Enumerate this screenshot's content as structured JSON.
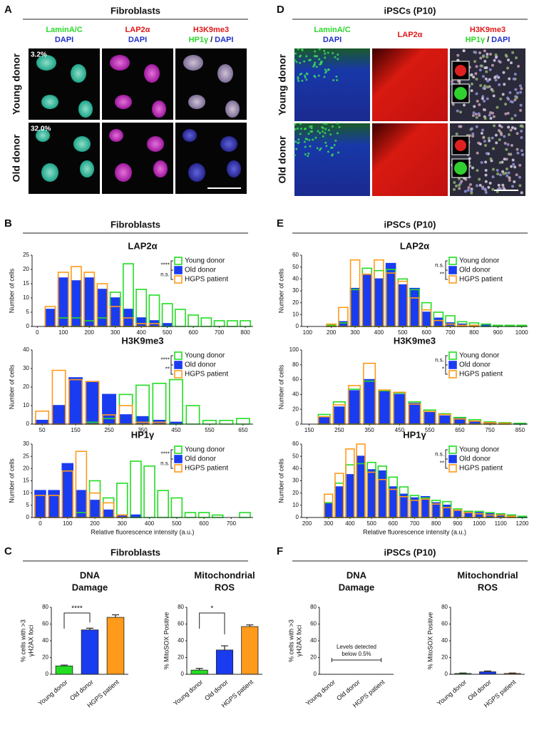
{
  "panels": [
    {
      "letter": "A",
      "header": "Fibroblasts",
      "columns": [
        [
          [
            {
              "text": "LaminA/C",
              "color": "#2bd82b"
            }
          ],
          [
            {
              "text": "DAPI",
              "color": "#1f2fc8"
            }
          ]
        ],
        [
          [
            {
              "text": "LAP2α",
              "color": "#e01818"
            }
          ],
          [
            {
              "text": "DAPI",
              "color": "#1f2fc8"
            }
          ]
        ],
        [
          [
            {
              "text": "H3K9me3",
              "color": "#e01818"
            }
          ],
          [
            {
              "text": "HP1γ",
              "color": "#2bd82b"
            },
            {
              "text": "/",
              "color": "#111111"
            },
            {
              "text": "DAPI",
              "color": "#1f2fc8"
            }
          ]
        ]
      ],
      "rows": [
        "Young donor",
        "Old donor"
      ],
      "insets": [
        "3.2%",
        "32.0%"
      ]
    },
    {
      "letter": "B",
      "header": "Fibroblasts"
    },
    {
      "letter": "C",
      "header": "Fibroblasts"
    },
    {
      "letter": "D",
      "header": "iPSCs (P10)",
      "columns": [
        [
          [
            {
              "text": "LaminA/C",
              "color": "#2bd82b"
            }
          ],
          [
            {
              "text": "DAPI",
              "color": "#1f2fc8"
            }
          ]
        ],
        [
          [
            {
              "text": "LAP2α",
              "color": "#e01818"
            }
          ]
        ],
        [
          [
            {
              "text": "H3K9me3",
              "color": "#e01818"
            }
          ],
          [
            {
              "text": "HP1γ",
              "color": "#2bd82b"
            },
            {
              "text": "/",
              "color": "#111111"
            },
            {
              "text": "DAPI",
              "color": "#1f2fc8"
            }
          ]
        ]
      ],
      "rows": [
        "Young donor",
        "Old donor"
      ]
    },
    {
      "letter": "E",
      "header": "iPSCs (P10)"
    },
    {
      "letter": "F",
      "header": "iPSCs (P10)"
    }
  ],
  "chart_data": [
    {
      "type": "bar",
      "title": "LAP2α",
      "ylabel": "Number of cells",
      "x": [
        50,
        100,
        150,
        200,
        250,
        300,
        350,
        400,
        450,
        500,
        550,
        600,
        650,
        700,
        750,
        800
      ],
      "xlim": [
        -20,
        830
      ],
      "xticks": [
        0,
        100,
        200,
        300,
        400,
        500,
        600,
        700,
        800
      ],
      "ylim": [
        0,
        25
      ],
      "yticks": [
        0,
        5,
        10,
        15,
        20,
        25
      ],
      "series": [
        {
          "name": "Young donor",
          "color": "#22dd22",
          "filled": false,
          "values": [
            0,
            3,
            3,
            2,
            3,
            12,
            22,
            13,
            11,
            8,
            6,
            4,
            3,
            2,
            2,
            2
          ]
        },
        {
          "name": "Old donor",
          "color": "#1a3cf0",
          "filled": true,
          "values": [
            6,
            17,
            16,
            17,
            13,
            10,
            6,
            3,
            2,
            1,
            0,
            0,
            0,
            0,
            0,
            0
          ]
        },
        {
          "name": "HGPS patient",
          "color": "#ff9a1a",
          "filled": false,
          "values": [
            7,
            19,
            21,
            19,
            15,
            7,
            3,
            1,
            1,
            0,
            0,
            0,
            0,
            0,
            0,
            0
          ]
        }
      ],
      "significance": [
        "****",
        "n.s."
      ]
    },
    {
      "type": "bar",
      "title": "H3K9me3",
      "ylabel": "Number of cells",
      "x": [
        50,
        100,
        150,
        200,
        250,
        300,
        350,
        400,
        450,
        500,
        550,
        600,
        650
      ],
      "xlim": [
        20,
        680
      ],
      "xticks": [
        50,
        150,
        250,
        350,
        450,
        550,
        650
      ],
      "ylim": [
        0,
        40
      ],
      "yticks": [
        0,
        10,
        20,
        30,
        40
      ],
      "series": [
        {
          "name": "Young donor",
          "color": "#22dd22",
          "filled": false,
          "values": [
            0,
            0,
            0,
            1,
            3,
            16,
            21,
            22,
            24,
            10,
            2,
            2,
            3
          ]
        },
        {
          "name": "Old donor",
          "color": "#1a3cf0",
          "filled": true,
          "values": [
            2,
            10,
            25,
            23,
            16,
            5,
            4,
            2,
            1,
            0,
            0,
            0,
            0
          ]
        },
        {
          "name": "HGPS patient",
          "color": "#ff9a1a",
          "filled": false,
          "values": [
            7,
            29,
            24,
            23,
            5,
            10,
            1,
            1,
            0,
            0,
            0,
            0,
            0
          ]
        }
      ],
      "significance": [
        "****",
        "**"
      ]
    },
    {
      "type": "bar",
      "title": "HP1γ",
      "ylabel": "Number of cells",
      "xlabel": "Relative fluorescence intensity (a.u.)",
      "x": [
        0,
        50,
        100,
        150,
        200,
        250,
        300,
        350,
        400,
        450,
        500,
        550,
        600,
        650,
        700,
        750
      ],
      "xlim": [
        -30,
        780
      ],
      "xticks": [
        0,
        100,
        200,
        300,
        400,
        500,
        600,
        700
      ],
      "ylim": [
        0,
        30
      ],
      "yticks": [
        0,
        5,
        10,
        15,
        20,
        25,
        30
      ],
      "series": [
        {
          "name": "Young donor",
          "color": "#22dd22",
          "filled": false,
          "values": [
            0,
            0,
            0,
            2,
            15,
            8,
            14,
            23,
            21,
            11,
            8,
            2,
            2,
            1,
            0,
            2
          ]
        },
        {
          "name": "Old donor",
          "color": "#1a3cf0",
          "filled": true,
          "values": [
            11,
            11,
            22,
            11,
            7,
            3,
            1,
            1,
            0,
            0,
            0,
            0,
            0,
            0,
            0,
            0
          ]
        },
        {
          "name": "HGPS patient",
          "color": "#ff9a1a",
          "filled": false,
          "values": [
            9,
            9,
            19,
            27,
            10,
            6,
            1,
            0,
            0,
            0,
            0,
            0,
            0,
            0,
            0,
            0
          ]
        }
      ],
      "significance": [
        "****",
        "n.s."
      ]
    },
    {
      "type": "bar",
      "title": "LAP2α",
      "ylabel": "Number of cells",
      "x": [
        100,
        150,
        200,
        250,
        300,
        350,
        400,
        450,
        500,
        550,
        600,
        650,
        700,
        750,
        800,
        850,
        900,
        950,
        1000
      ],
      "xlim": [
        75,
        1025
      ],
      "xticks": [
        100,
        200,
        300,
        400,
        500,
        600,
        700,
        800,
        900,
        1000
      ],
      "ylim": [
        0,
        60
      ],
      "yticks": [
        0,
        10,
        20,
        30,
        40,
        50,
        60
      ],
      "series": [
        {
          "name": "Young donor",
          "color": "#22dd22",
          "filled": false,
          "values": [
            0,
            0,
            1,
            3,
            31,
            49,
            47,
            48,
            40,
            31,
            20,
            12,
            9,
            4,
            3,
            2,
            1,
            1,
            1
          ]
        },
        {
          "name": "Old donor",
          "color": "#1a3cf0",
          "filled": true,
          "values": [
            0,
            0,
            1,
            4,
            32,
            43,
            40,
            53,
            35,
            32,
            12,
            7,
            3,
            2,
            1,
            1,
            0,
            0,
            0
          ]
        },
        {
          "name": "HGPS patient",
          "color": "#ff9a1a",
          "filled": false,
          "values": [
            0,
            0,
            2,
            16,
            56,
            44,
            56,
            45,
            38,
            24,
            14,
            5,
            2,
            1,
            1,
            0,
            0,
            0,
            0
          ]
        }
      ],
      "significance": [
        "n.s.",
        "**"
      ]
    },
    {
      "type": "bar",
      "title": "H3K9me3",
      "ylabel": "Number of cells",
      "x": [
        200,
        250,
        300,
        350,
        400,
        450,
        500,
        550,
        600,
        650,
        700,
        750,
        800,
        850
      ],
      "xlim": [
        125,
        875
      ],
      "xticks": [
        150,
        250,
        350,
        450,
        550,
        650,
        750,
        850
      ],
      "ylim": [
        0,
        100
      ],
      "yticks": [
        0,
        20,
        40,
        60,
        80,
        100
      ],
      "series": [
        {
          "name": "Young donor",
          "color": "#22dd22",
          "filled": false,
          "values": [
            13,
            30,
            47,
            58,
            45,
            42,
            30,
            19,
            14,
            9,
            6,
            3,
            2,
            1
          ]
        },
        {
          "name": "Old donor",
          "color": "#1a3cf0",
          "filled": true,
          "values": [
            9,
            23,
            45,
            60,
            44,
            40,
            28,
            17,
            11,
            8,
            4,
            2,
            1,
            1
          ]
        },
        {
          "name": "HGPS patient",
          "color": "#ff9a1a",
          "filled": false,
          "values": [
            10,
            26,
            52,
            82,
            46,
            43,
            27,
            17,
            13,
            7,
            4,
            2,
            1,
            0
          ]
        }
      ],
      "significance": [
        "n.s.",
        "*"
      ]
    },
    {
      "type": "bar",
      "title": "HP1γ",
      "ylabel": "Number of cells",
      "xlabel": "Relative fluorescence intensity (a.u.)",
      "x": [
        300,
        350,
        400,
        450,
        500,
        550,
        600,
        650,
        700,
        750,
        800,
        850,
        900,
        950,
        1000,
        1050,
        1100,
        1150,
        1200
      ],
      "xlim": [
        175,
        1225
      ],
      "xticks": [
        200,
        300,
        400,
        500,
        600,
        700,
        800,
        900,
        1000,
        1100,
        1200
      ],
      "ylim": [
        0,
        60
      ],
      "yticks": [
        0,
        10,
        20,
        30,
        40,
        50,
        60
      ],
      "series": [
        {
          "name": "Young donor",
          "color": "#22dd22",
          "filled": false,
          "values": [
            12,
            28,
            43,
            44,
            45,
            42,
            33,
            25,
            18,
            16,
            14,
            13,
            7,
            5,
            5,
            4,
            3,
            2,
            1
          ]
        },
        {
          "name": "Old donor",
          "color": "#1a3cf0",
          "filled": true,
          "values": [
            12,
            25,
            35,
            50,
            39,
            38,
            25,
            19,
            16,
            17,
            12,
            10,
            5,
            5,
            4,
            3,
            3,
            2,
            1
          ]
        },
        {
          "name": "HGPS patient",
          "color": "#ff9a1a",
          "filled": false,
          "values": [
            19,
            36,
            56,
            60,
            37,
            31,
            23,
            17,
            14,
            15,
            11,
            8,
            6,
            4,
            3,
            2,
            2,
            1,
            0
          ]
        }
      ],
      "significance": [
        "n.s.",
        "**"
      ]
    },
    {
      "type": "bar",
      "title": [
        "DNA",
        "Damage"
      ],
      "ylabel": [
        "% cells with >3",
        "γH2AX foci"
      ],
      "categories": [
        "Young donor",
        "Old donor",
        "HGPS patient"
      ],
      "colors": [
        "#22dd22",
        "#1a3cf0",
        "#ff9a1a"
      ],
      "values": [
        10,
        53,
        68
      ],
      "errors": [
        1,
        2,
        3
      ],
      "ylim": [
        0,
        80
      ],
      "yticks": [
        0,
        20,
        40,
        60,
        80
      ],
      "significance": "****"
    },
    {
      "type": "bar",
      "title": [
        "Mitochondrial",
        "ROS"
      ],
      "ylabel": [
        "% MitoSOX Positive"
      ],
      "categories": [
        "Young donor",
        "Old donor",
        "HGPS patient"
      ],
      "colors": [
        "#22dd22",
        "#1a3cf0",
        "#ff9a1a"
      ],
      "values": [
        5,
        29,
        57
      ],
      "errors": [
        2,
        5,
        2
      ],
      "ylim": [
        0,
        80
      ],
      "yticks": [
        0,
        20,
        40,
        60,
        80
      ],
      "significance": "*"
    },
    {
      "type": "bar",
      "title": [
        "DNA",
        "Damage"
      ],
      "ylabel": [
        "% cells with >3",
        "γH2AX foci"
      ],
      "categories": [
        "Young donor",
        "Old donor",
        "HGPS patient"
      ],
      "ylim": [
        0,
        80
      ],
      "yticks": [
        0,
        20,
        40,
        60,
        80
      ],
      "annotation": [
        "Levels detected",
        "below 0.5%"
      ]
    },
    {
      "type": "bar",
      "title": [
        "Mitochondrial",
        "ROS"
      ],
      "ylabel": [
        "% MitoSOX Positive"
      ],
      "categories": [
        "Young donor",
        "Old donor",
        "HGPS patient"
      ],
      "colors": [
        "#22dd22",
        "#1a3cf0",
        "#ff9a1a"
      ],
      "values": [
        1,
        3,
        1
      ],
      "errors": [
        0.5,
        1,
        0.5
      ],
      "ylim": [
        0,
        80
      ],
      "yticks": [
        0,
        20,
        40,
        60,
        80
      ]
    }
  ]
}
